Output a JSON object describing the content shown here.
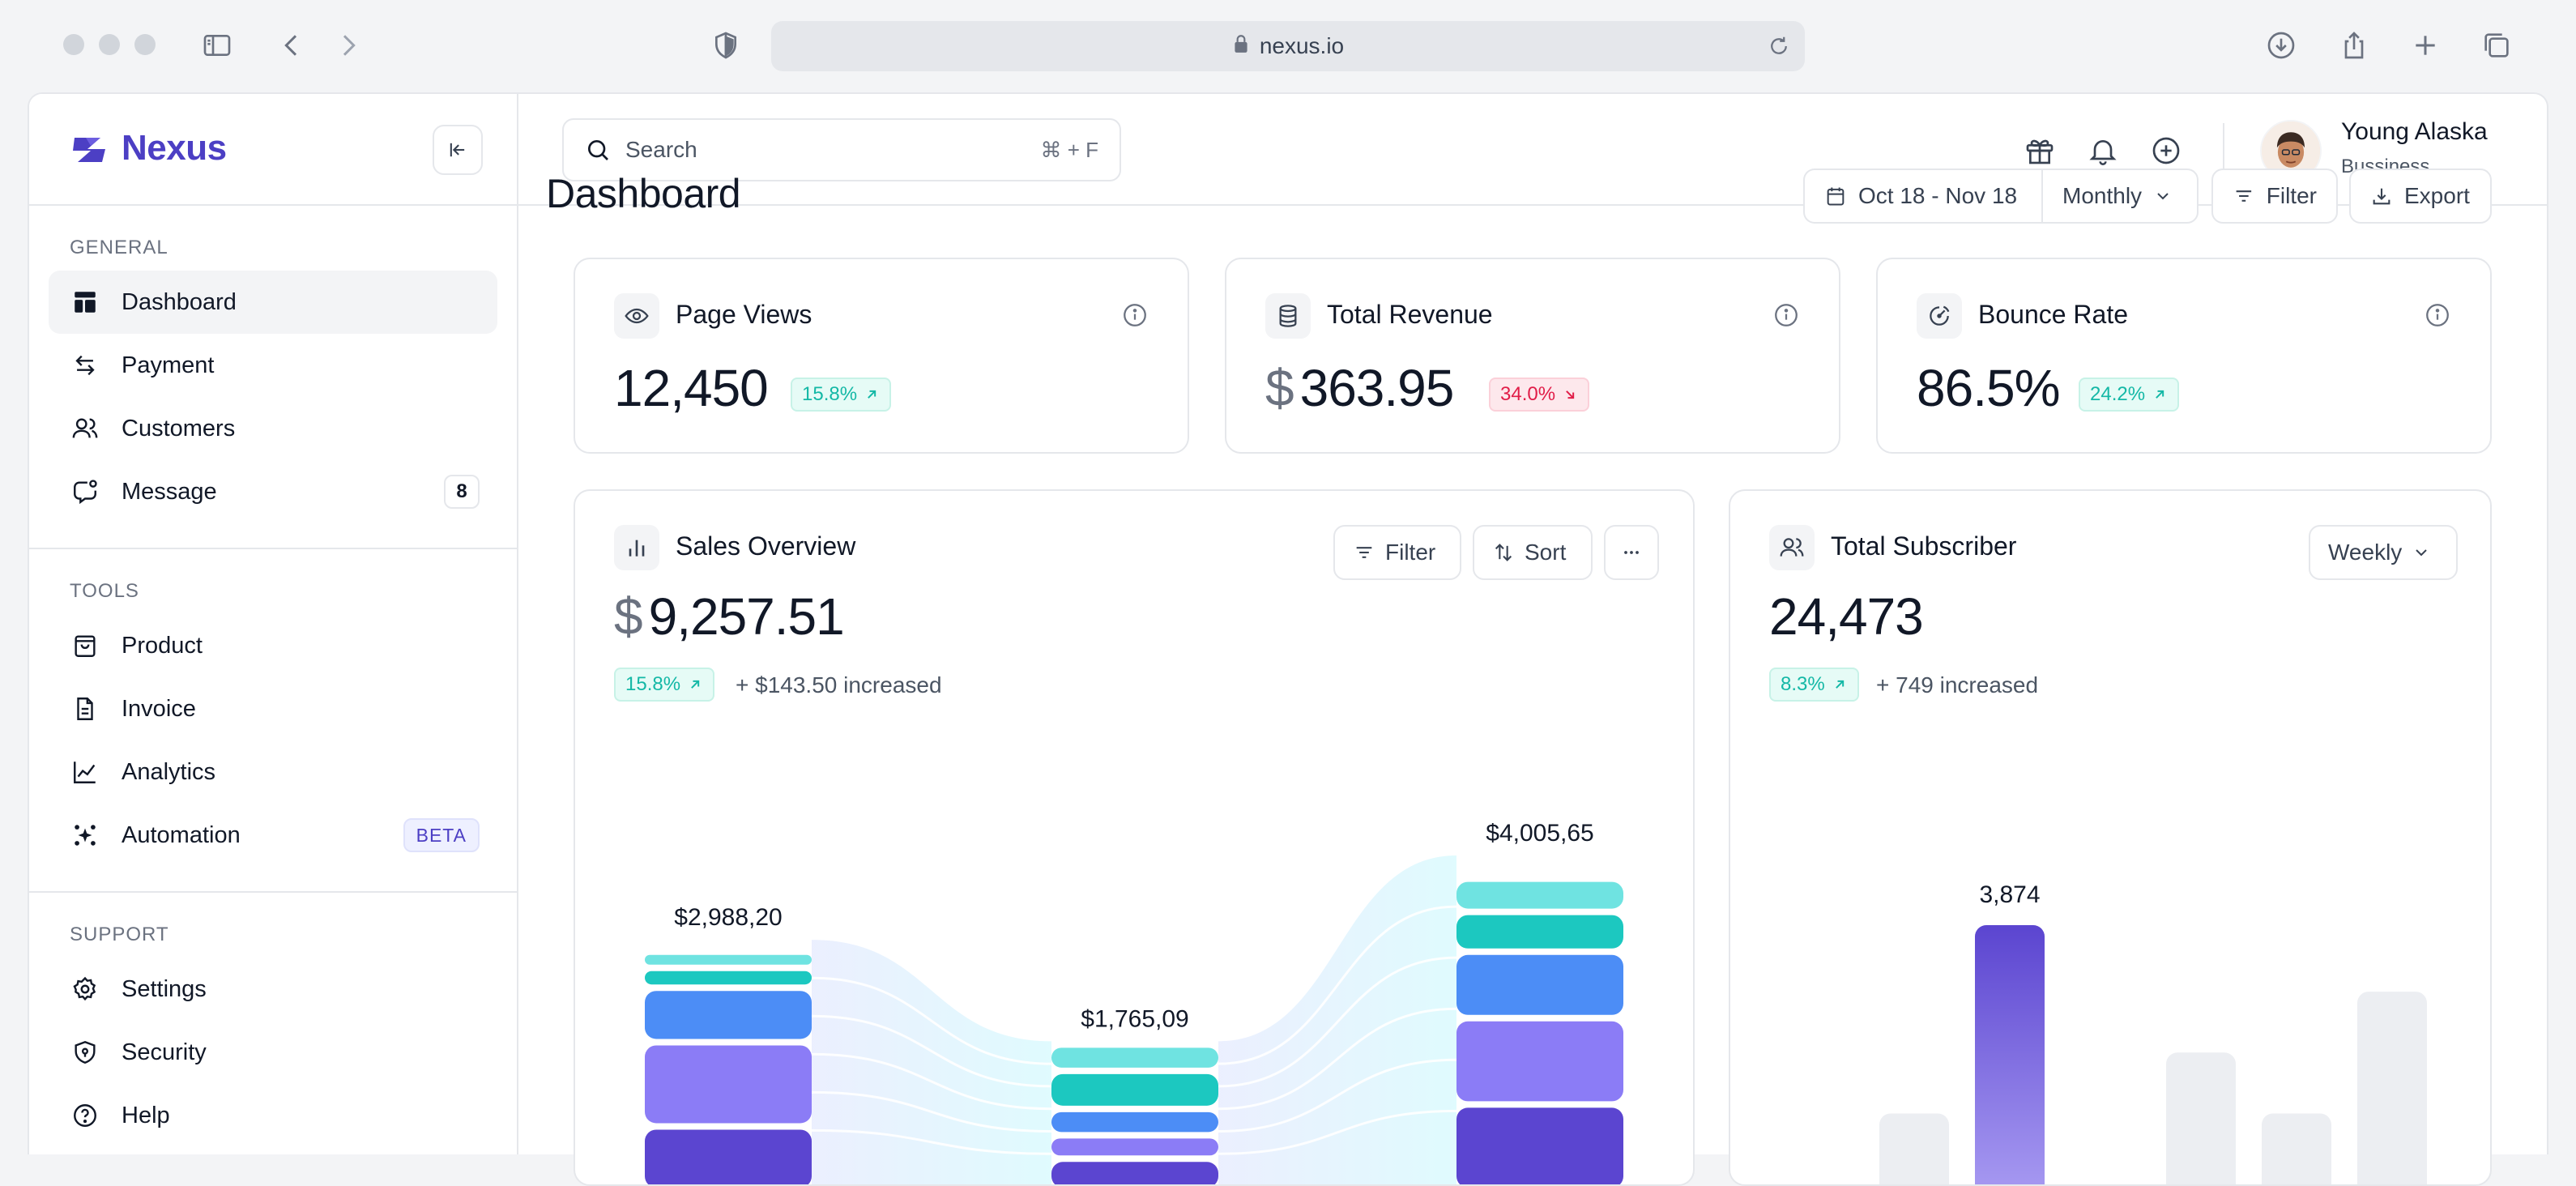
{
  "browser": {
    "url": "nexus.io"
  },
  "brand": {
    "name": "Nexus",
    "accent": "#4c3fc4"
  },
  "sidebar": {
    "sections": [
      {
        "heading": "GENERAL",
        "items": [
          {
            "label": "Dashboard",
            "icon": "layout-icon",
            "active": true
          },
          {
            "label": "Payment",
            "icon": "transfer-icon"
          },
          {
            "label": "Customers",
            "icon": "users-icon"
          },
          {
            "label": "Message",
            "icon": "message-icon",
            "badge": "8"
          }
        ]
      },
      {
        "heading": "TOOLS",
        "items": [
          {
            "label": "Product",
            "icon": "bag-icon"
          },
          {
            "label": "Invoice",
            "icon": "document-icon"
          },
          {
            "label": "Analytics",
            "icon": "trend-icon"
          },
          {
            "label": "Automation",
            "icon": "sparkle-icon",
            "badge": "BETA"
          }
        ]
      },
      {
        "heading": "SUPPORT",
        "items": [
          {
            "label": "Settings",
            "icon": "gear-icon"
          },
          {
            "label": "Security",
            "icon": "shield-icon"
          },
          {
            "label": "Help",
            "icon": "help-icon"
          }
        ]
      }
    ]
  },
  "topbar": {
    "search_placeholder": "Search",
    "search_shortcut": "⌘ + F",
    "user": {
      "name": "Young Alaska",
      "role": "Bussiness"
    }
  },
  "main": {
    "title": "Dashboard",
    "date_range": "Oct 18 - Nov 18",
    "period": "Monthly",
    "filter_label": "Filter",
    "export_label": "Export"
  },
  "stats": [
    {
      "title": "Page Views",
      "currency": "",
      "value": "12,450",
      "delta": "15.8%",
      "trend": "up",
      "icon": "eye-icon"
    },
    {
      "title": "Total Revenue",
      "currency": "$",
      "value": "363.95",
      "delta": "34.0%",
      "trend": "down",
      "icon": "database-icon"
    },
    {
      "title": "Bounce Rate",
      "currency": "",
      "value": "86.5%",
      "delta": "24.2%",
      "trend": "up",
      "icon": "gauge-icon"
    }
  ],
  "sales": {
    "title": "Sales Overview",
    "currency": "$",
    "value": "9,257.51",
    "delta": "15.8%",
    "increase": "+ $143.50 increased",
    "filter_label": "Filter",
    "sort_label": "Sort"
  },
  "subscriber": {
    "title": "Total Subscriber",
    "value": "24,473",
    "delta": "8.3%",
    "increase": "+ 749 increased",
    "period": "Weekly"
  },
  "colors": {
    "up": "#14b8a6",
    "down": "#e11d48",
    "violet_dark": "#5b45d0",
    "violet": "#8b7cf6",
    "blue": "#4c8df6",
    "teal": "#1cc8c0",
    "cyan_light": "#6fe3e1"
  },
  "chart_data": [
    {
      "type": "bar",
      "title": "Sales Overview",
      "categories": [
        "",
        "",
        ""
      ],
      "values": [
        2988.2,
        1765.09,
        4005.65
      ],
      "data_labels": [
        "$2,988,20",
        "$1,765,09",
        "$4,005,65"
      ],
      "stacked": true,
      "segment_colors": [
        "#5b45d0",
        "#8b7cf6",
        "#4c8df6",
        "#1cc8c0",
        "#6fe3e1"
      ]
    },
    {
      "type": "bar",
      "title": "Total Subscriber",
      "categories": [
        "",
        "",
        "",
        "",
        "",
        "",
        ""
      ],
      "values": [
        150,
        1400,
        3874,
        150,
        2200,
        1400,
        3000
      ],
      "highlighted_index": 2,
      "highlight_label": "3,874"
    }
  ]
}
